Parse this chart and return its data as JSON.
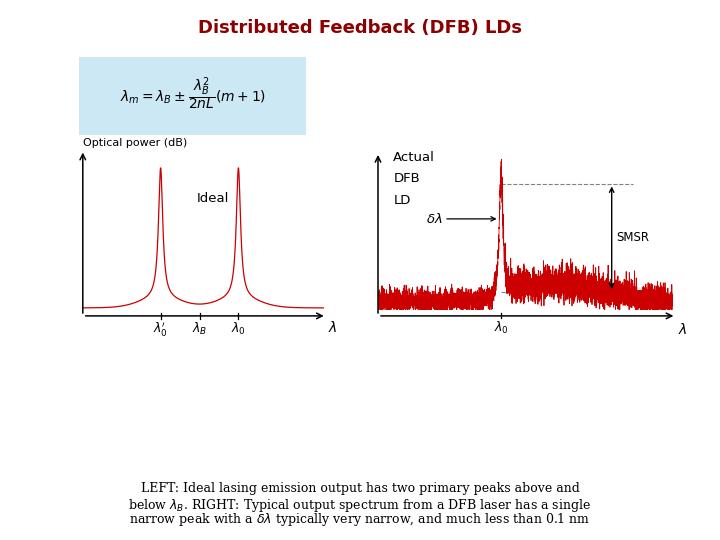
{
  "title": "Distributed Feedback (DFB) LDs",
  "title_color": "#8B0000",
  "title_fontsize": 13,
  "bg_color": "#ffffff",
  "formula_box_color": "#cce8f4",
  "red_color": "#cc0000",
  "caption_line1": "LEFT: Ideal lasing emission output has two primary peaks above and",
  "caption_line2_pre": "below ",
  "caption_line2_mid": "λ",
  "caption_line2_sub": "B",
  "caption_line2_post": ". RIGHT: Typical output spectrum from a DFB laser has a single",
  "caption_line3_pre": "narrow peak with a ",
  "caption_line3_mid": "δλ",
  "caption_line3_post": " typically very narrow, and much less than 0.1 nm"
}
